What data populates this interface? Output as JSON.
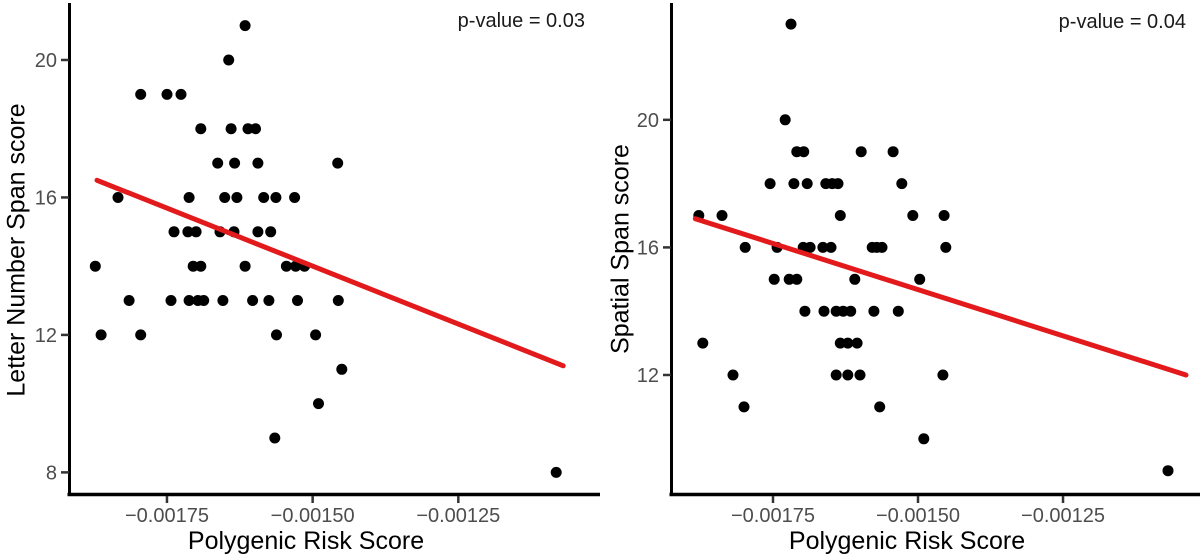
{
  "figure": {
    "background": "#ffffff"
  },
  "chart_data": [
    {
      "id": "letter-number-span",
      "type": "scatter",
      "annotation": "p-value = 0.03",
      "xlabel": "Polygenic Risk Score",
      "ylabel": "Letter Number Span score",
      "xlim": [
        -0.0019147,
        -0.001012
      ],
      "ylim": [
        7.4,
        21.6
      ],
      "grid": false,
      "legend": "none",
      "x_ticks": [
        {
          "value": -0.00175,
          "label": "−0.00175"
        },
        {
          "value": -0.0015,
          "label": "−0.00150"
        },
        {
          "value": -0.00125,
          "label": "−0.00125"
        }
      ],
      "y_ticks": [
        {
          "value": 20,
          "label": "20"
        },
        {
          "value": 16,
          "label": "16"
        },
        {
          "value": 12,
          "label": "12"
        },
        {
          "value": 8,
          "label": "8"
        }
      ],
      "points": [
        [
          -0.001616,
          21
        ],
        [
          -0.001644,
          20
        ],
        [
          -0.001795,
          19
        ],
        [
          -0.00175,
          19
        ],
        [
          -0.001726,
          19
        ],
        [
          -0.001692,
          18
        ],
        [
          -0.00164,
          18
        ],
        [
          -0.001611,
          18
        ],
        [
          -0.001598,
          18
        ],
        [
          -0.001663,
          17
        ],
        [
          -0.001634,
          17
        ],
        [
          -0.001594,
          17
        ],
        [
          -0.001457,
          17
        ],
        [
          -0.001834,
          16
        ],
        [
          -0.001712,
          16
        ],
        [
          -0.001651,
          16
        ],
        [
          -0.00163,
          16
        ],
        [
          -0.001584,
          16
        ],
        [
          -0.001563,
          16
        ],
        [
          -0.001531,
          16
        ],
        [
          -0.001738,
          15
        ],
        [
          -0.001714,
          15
        ],
        [
          -0.0017,
          15
        ],
        [
          -0.001659,
          15
        ],
        [
          -0.001635,
          15
        ],
        [
          -0.001594,
          15
        ],
        [
          -0.001572,
          15
        ],
        [
          -0.001873,
          14
        ],
        [
          -0.001705,
          14
        ],
        [
          -0.001692,
          14
        ],
        [
          -0.001616,
          14
        ],
        [
          -0.001545,
          14
        ],
        [
          -0.001529,
          14
        ],
        [
          -0.001514,
          14
        ],
        [
          -0.001815,
          13
        ],
        [
          -0.001743,
          13
        ],
        [
          -0.001712,
          13
        ],
        [
          -0.001697,
          13
        ],
        [
          -0.001687,
          13
        ],
        [
          -0.001654,
          13
        ],
        [
          -0.001603,
          13
        ],
        [
          -0.001575,
          13
        ],
        [
          -0.001526,
          13
        ],
        [
          -0.001456,
          13
        ],
        [
          -0.001863,
          12
        ],
        [
          -0.001795,
          12
        ],
        [
          -0.001562,
          12
        ],
        [
          -0.001495,
          12
        ],
        [
          -0.00145,
          11
        ],
        [
          -0.00149,
          10
        ],
        [
          -0.001565,
          9
        ],
        [
          -0.001082,
          8
        ]
      ],
      "trend_line": {
        "x1": -0.00187,
        "y1": 16.5,
        "x2": -0.00107,
        "y2": 11.1
      },
      "colors": {
        "point": "#000000",
        "trend": "#e31a1c",
        "axis": "#000000",
        "tick_label": "#4d4d4d"
      }
    },
    {
      "id": "spatial-span",
      "type": "scatter",
      "annotation": "p-value = 0.04",
      "xlabel": "Polygenic Risk Score",
      "ylabel": "Spatial Span score",
      "xlim": [
        -0.0019224,
        -0.001019
      ],
      "ylim": [
        8.3,
        23.6
      ],
      "grid": false,
      "legend": "none",
      "x_ticks": [
        {
          "value": -0.00175,
          "label": "−0.00175"
        },
        {
          "value": -0.0015,
          "label": "−0.00150"
        },
        {
          "value": -0.00125,
          "label": "−0.00125"
        }
      ],
      "y_ticks": [
        {
          "value": 20,
          "label": "20"
        },
        {
          "value": 16,
          "label": "16"
        },
        {
          "value": 12,
          "label": "12"
        }
      ],
      "points": [
        [
          -0.001719,
          23
        ],
        [
          -0.001729,
          20
        ],
        [
          -0.001709,
          19
        ],
        [
          -0.001697,
          19
        ],
        [
          -0.001598,
          19
        ],
        [
          -0.001543,
          19
        ],
        [
          -0.001755,
          18
        ],
        [
          -0.001714,
          18
        ],
        [
          -0.001691,
          18
        ],
        [
          -0.001659,
          18
        ],
        [
          -0.001648,
          18
        ],
        [
          -0.001638,
          18
        ],
        [
          -0.001528,
          18
        ],
        [
          -0.001878,
          17
        ],
        [
          -0.001838,
          17
        ],
        [
          -0.001634,
          17
        ],
        [
          -0.001509,
          17
        ],
        [
          -0.001455,
          17
        ],
        [
          -0.001798,
          16
        ],
        [
          -0.001743,
          16
        ],
        [
          -0.001698,
          16
        ],
        [
          -0.001686,
          16
        ],
        [
          -0.001664,
          16
        ],
        [
          -0.00165,
          16
        ],
        [
          -0.001579,
          16
        ],
        [
          -0.001571,
          16
        ],
        [
          -0.001562,
          16
        ],
        [
          -0.001452,
          16
        ],
        [
          -0.001748,
          15
        ],
        [
          -0.001722,
          15
        ],
        [
          -0.001709,
          15
        ],
        [
          -0.001609,
          15
        ],
        [
          -0.001497,
          15
        ],
        [
          -0.001695,
          14
        ],
        [
          -0.001662,
          14
        ],
        [
          -0.001641,
          14
        ],
        [
          -0.001629,
          14
        ],
        [
          -0.001616,
          14
        ],
        [
          -0.001576,
          14
        ],
        [
          -0.001534,
          14
        ],
        [
          -0.001871,
          13
        ],
        [
          -0.001634,
          13
        ],
        [
          -0.001621,
          13
        ],
        [
          -0.001605,
          13
        ],
        [
          -0.001819,
          12
        ],
        [
          -0.001641,
          12
        ],
        [
          -0.001621,
          12
        ],
        [
          -0.0016,
          12
        ],
        [
          -0.001457,
          12
        ],
        [
          -0.0018,
          11
        ],
        [
          -0.001566,
          11
        ],
        [
          -0.00149,
          10
        ],
        [
          -0.001069,
          9
        ]
      ],
      "trend_line": {
        "x1": -0.001884,
        "y1": 16.9,
        "x2": -0.001038,
        "y2": 12.0
      },
      "colors": {
        "point": "#000000",
        "trend": "#e31a1c",
        "axis": "#000000",
        "tick_label": "#4d4d4d"
      }
    }
  ]
}
